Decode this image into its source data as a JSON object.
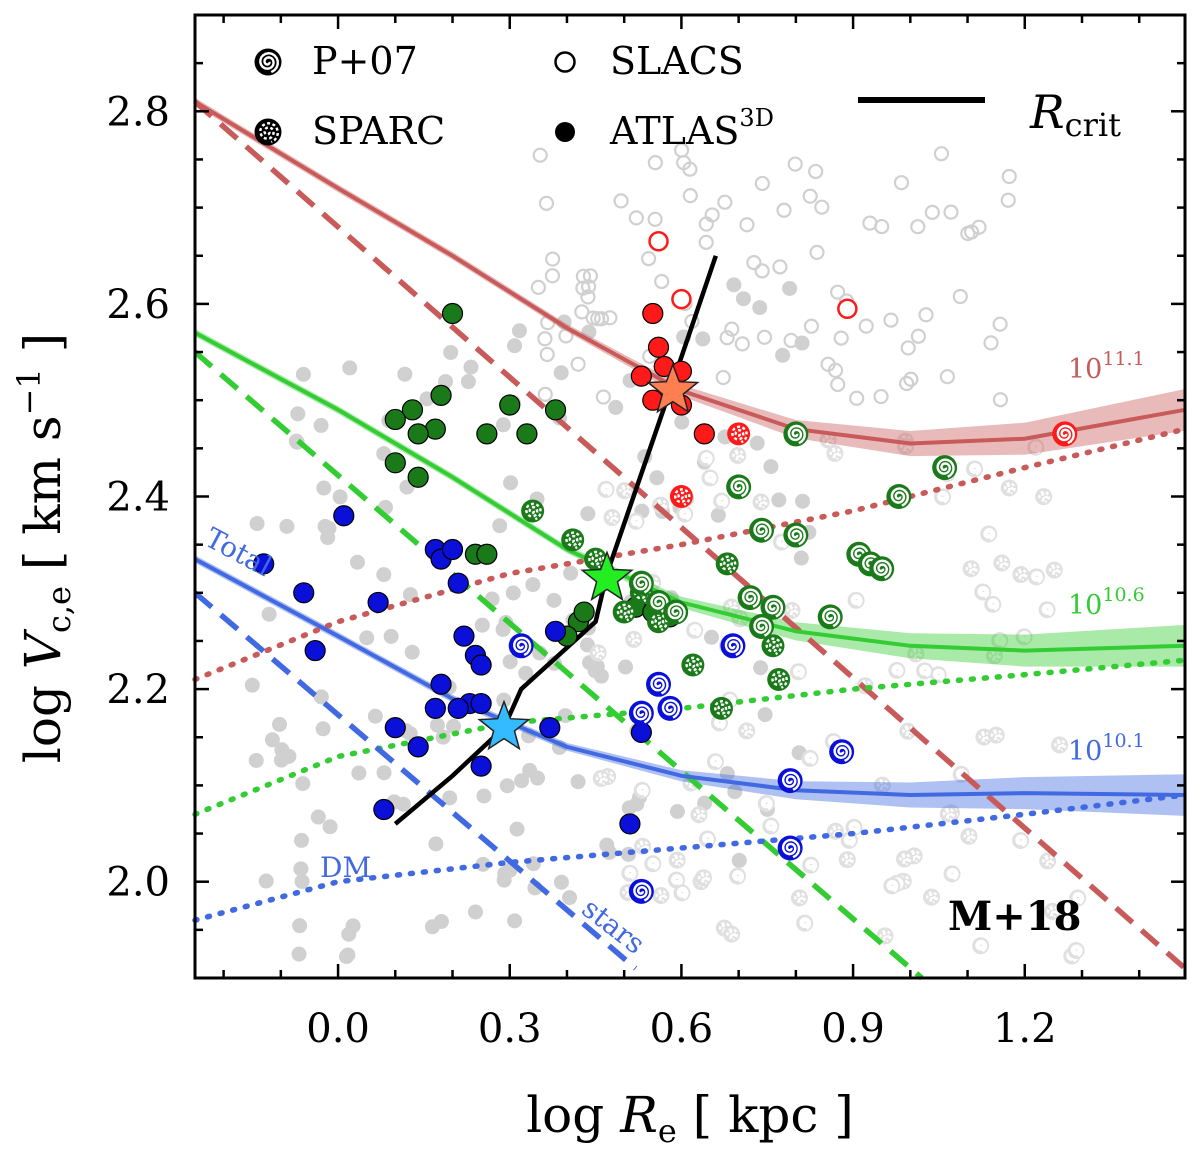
{
  "chart_data": {
    "type": "scatter",
    "xlabel": "log R_e [ kpc ]",
    "ylabel": "log V_c,e [ km s^-1 ]",
    "xlim": [
      -0.25,
      1.48
    ],
    "ylim": [
      1.9,
      2.9
    ],
    "x_ticks": [
      0.0,
      0.3,
      0.6,
      0.9,
      1.2
    ],
    "x_tick_labels": [
      "0.0",
      "0.3",
      "0.6",
      "0.9",
      "1.2"
    ],
    "y_ticks": [
      2.0,
      2.2,
      2.4,
      2.6,
      2.8
    ],
    "y_tick_labels": [
      "2.0",
      "2.2",
      "2.4",
      "2.6",
      "2.8"
    ],
    "badge": "M+18",
    "legend": {
      "p07": "P+07",
      "sparc": "SPARC",
      "slacs": "SLACS",
      "atlas": "ATLAS",
      "atlas_sup": "3D",
      "rcrit": "R",
      "rcrit_sub": "crit"
    },
    "mass_labels": {
      "high": {
        "base": "10",
        "exp": "11.1"
      },
      "mid": {
        "base": "10",
        "exp": "10.6"
      },
      "low": {
        "base": "10",
        "exp": "10.1"
      }
    },
    "curve_labels": {
      "total": "Total",
      "dm": "DM",
      "stars": "stars"
    },
    "colors": {
      "high": "#c85a5a",
      "mid": "#33cc33",
      "low": "#4169e1",
      "gray": "#d0d0d0"
    },
    "series": [
      {
        "name": "10^11.1 total",
        "color": "#c85a5a",
        "style": "solid",
        "x": [
          -0.25,
          0.0,
          0.2,
          0.4,
          0.6,
          0.8,
          1.0,
          1.2,
          1.48
        ],
        "y": [
          2.81,
          2.72,
          2.65,
          2.575,
          2.51,
          2.47,
          2.455,
          2.46,
          2.49
        ]
      },
      {
        "name": "10^11.1 stars",
        "color": "#c85a5a",
        "style": "dashed",
        "x": [
          -0.25,
          1.48
        ],
        "y": [
          2.81,
          1.91
        ]
      },
      {
        "name": "10^11.1 DM",
        "color": "#c85a5a",
        "style": "dotted",
        "x": [
          -0.25,
          0.0,
          0.3,
          0.6,
          0.9,
          1.2,
          1.48
        ],
        "y": [
          2.21,
          2.27,
          2.32,
          2.35,
          2.385,
          2.43,
          2.47
        ]
      },
      {
        "name": "10^10.6 total",
        "color": "#33cc33",
        "style": "solid",
        "x": [
          -0.25,
          0.0,
          0.2,
          0.4,
          0.6,
          0.8,
          1.0,
          1.2,
          1.48
        ],
        "y": [
          2.57,
          2.49,
          2.42,
          2.345,
          2.29,
          2.26,
          2.245,
          2.24,
          2.245
        ]
      },
      {
        "name": "10^10.6 stars",
        "color": "#33cc33",
        "style": "dashed",
        "x": [
          -0.25,
          1.02
        ],
        "y": [
          2.55,
          1.9
        ]
      },
      {
        "name": "10^10.6 DM",
        "color": "#33cc33",
        "style": "dotted",
        "x": [
          -0.25,
          0.0,
          0.3,
          0.6,
          0.9,
          1.2,
          1.48
        ],
        "y": [
          2.07,
          2.13,
          2.165,
          2.18,
          2.2,
          2.215,
          2.23
        ]
      },
      {
        "name": "10^10.1 total",
        "color": "#4169e1",
        "style": "solid",
        "x": [
          -0.25,
          0.0,
          0.2,
          0.4,
          0.6,
          0.8,
          1.0,
          1.2,
          1.48
        ],
        "y": [
          2.335,
          2.255,
          2.19,
          2.14,
          2.11,
          2.095,
          2.09,
          2.092,
          2.09
        ]
      },
      {
        "name": "10^10.1 stars",
        "color": "#4169e1",
        "style": "dashed",
        "x": [
          -0.25,
          0.52
        ],
        "y": [
          2.3,
          1.91
        ]
      },
      {
        "name": "10^10.1 DM",
        "color": "#4169e1",
        "style": "dotted",
        "x": [
          -0.25,
          0.0,
          0.3,
          0.6,
          0.9,
          1.2,
          1.48
        ],
        "y": [
          1.96,
          2.0,
          2.02,
          2.035,
          2.05,
          2.07,
          2.09
        ]
      },
      {
        "name": "R_crit",
        "color": "#000000",
        "style": "solid",
        "x": [
          0.1,
          0.2,
          0.29,
          0.32,
          0.45,
          0.47,
          0.58,
          0.66
        ],
        "y": [
          2.06,
          2.11,
          2.16,
          2.2,
          2.27,
          2.32,
          2.51,
          2.65
        ]
      }
    ],
    "stars": [
      {
        "x": 0.585,
        "y": 2.51,
        "color": "#ff7f50"
      },
      {
        "x": 0.47,
        "y": 2.315,
        "color": "#22ee22"
      },
      {
        "x": 0.29,
        "y": 2.16,
        "color": "#33bbff"
      }
    ],
    "atlas_points": [
      {
        "x": 0.55,
        "y": 2.59,
        "c": "#ff1a1a"
      },
      {
        "x": 0.56,
        "y": 2.555,
        "c": "#ff1a1a"
      },
      {
        "x": 0.57,
        "y": 2.535,
        "c": "#ff1a1a"
      },
      {
        "x": 0.53,
        "y": 2.525,
        "c": "#ff1a1a"
      },
      {
        "x": 0.6,
        "y": 2.53,
        "c": "#ff1a1a"
      },
      {
        "x": 0.55,
        "y": 2.5,
        "c": "#ff1a1a"
      },
      {
        "x": 0.6,
        "y": 2.495,
        "c": "#ff1a1a"
      },
      {
        "x": 0.64,
        "y": 2.465,
        "c": "#ff1a1a"
      },
      {
        "x": 0.2,
        "y": 2.59,
        "c": "#1a7a1a"
      },
      {
        "x": 0.18,
        "y": 2.505,
        "c": "#1a7a1a"
      },
      {
        "x": 0.13,
        "y": 2.49,
        "c": "#1a7a1a"
      },
      {
        "x": 0.1,
        "y": 2.48,
        "c": "#1a7a1a"
      },
      {
        "x": 0.17,
        "y": 2.47,
        "c": "#1a7a1a"
      },
      {
        "x": 0.14,
        "y": 2.465,
        "c": "#1a7a1a"
      },
      {
        "x": 0.3,
        "y": 2.495,
        "c": "#1a7a1a"
      },
      {
        "x": 0.38,
        "y": 2.49,
        "c": "#1a7a1a"
      },
      {
        "x": 0.26,
        "y": 2.465,
        "c": "#1a7a1a"
      },
      {
        "x": 0.33,
        "y": 2.465,
        "c": "#1a7a1a"
      },
      {
        "x": 0.1,
        "y": 2.435,
        "c": "#1a7a1a"
      },
      {
        "x": 0.14,
        "y": 2.42,
        "c": "#1a7a1a"
      },
      {
        "x": 0.24,
        "y": 2.34,
        "c": "#1a7a1a"
      },
      {
        "x": 0.26,
        "y": 2.34,
        "c": "#1a7a1a"
      },
      {
        "x": 0.42,
        "y": 2.27,
        "c": "#1a7a1a"
      },
      {
        "x": 0.43,
        "y": 2.28,
        "c": "#1a7a1a"
      },
      {
        "x": 0.4,
        "y": 2.255,
        "c": "#1a7a1a"
      },
      {
        "x": 0.52,
        "y": 2.285,
        "c": "#1a7a1a"
      },
      {
        "x": 0.55,
        "y": 2.28,
        "c": "#1a7a1a"
      },
      {
        "x": 0.58,
        "y": 2.275,
        "c": "#1a7a1a"
      },
      {
        "x": 0.01,
        "y": 2.38,
        "c": "#0a10d8"
      },
      {
        "x": 0.17,
        "y": 2.345,
        "c": "#0a10d8"
      },
      {
        "x": 0.18,
        "y": 2.335,
        "c": "#0a10d8"
      },
      {
        "x": 0.2,
        "y": 2.345,
        "c": "#0a10d8"
      },
      {
        "x": -0.13,
        "y": 2.33,
        "c": "#0a10d8"
      },
      {
        "x": -0.06,
        "y": 2.3,
        "c": "#0a10d8"
      },
      {
        "x": 0.07,
        "y": 2.29,
        "c": "#0a10d8"
      },
      {
        "x": 0.21,
        "y": 2.31,
        "c": "#0a10d8"
      },
      {
        "x": 0.22,
        "y": 2.255,
        "c": "#0a10d8"
      },
      {
        "x": 0.24,
        "y": 2.235,
        "c": "#0a10d8"
      },
      {
        "x": 0.25,
        "y": 2.225,
        "c": "#0a10d8"
      },
      {
        "x": -0.04,
        "y": 2.24,
        "c": "#0a10d8"
      },
      {
        "x": 0.18,
        "y": 2.205,
        "c": "#0a10d8"
      },
      {
        "x": 0.23,
        "y": 2.185,
        "c": "#0a10d8"
      },
      {
        "x": 0.17,
        "y": 2.18,
        "c": "#0a10d8"
      },
      {
        "x": 0.21,
        "y": 2.18,
        "c": "#0a10d8"
      },
      {
        "x": 0.25,
        "y": 2.185,
        "c": "#0a10d8"
      },
      {
        "x": 0.1,
        "y": 2.16,
        "c": "#0a10d8"
      },
      {
        "x": 0.14,
        "y": 2.14,
        "c": "#0a10d8"
      },
      {
        "x": 0.25,
        "y": 2.12,
        "c": "#0a10d8"
      },
      {
        "x": 0.38,
        "y": 2.26,
        "c": "#0a10d8"
      },
      {
        "x": 0.37,
        "y": 2.16,
        "c": "#0a10d8"
      },
      {
        "x": 0.53,
        "y": 2.155,
        "c": "#0a10d8"
      },
      {
        "x": 0.08,
        "y": 2.075,
        "c": "#0a10d8"
      },
      {
        "x": 0.51,
        "y": 2.06,
        "c": "#0a10d8"
      }
    ],
    "p07_points": [
      {
        "x": 1.27,
        "y": 2.465,
        "c": "#ff1a1a"
      },
      {
        "x": 0.8,
        "y": 2.465,
        "c": "#1a7a1a"
      },
      {
        "x": 1.06,
        "y": 2.43,
        "c": "#1a7a1a"
      },
      {
        "x": 0.7,
        "y": 2.41,
        "c": "#1a7a1a"
      },
      {
        "x": 0.98,
        "y": 2.4,
        "c": "#1a7a1a"
      },
      {
        "x": 0.74,
        "y": 2.365,
        "c": "#1a7a1a"
      },
      {
        "x": 0.8,
        "y": 2.36,
        "c": "#1a7a1a"
      },
      {
        "x": 0.91,
        "y": 2.34,
        "c": "#1a7a1a"
      },
      {
        "x": 0.93,
        "y": 2.33,
        "c": "#1a7a1a"
      },
      {
        "x": 0.95,
        "y": 2.325,
        "c": "#1a7a1a"
      },
      {
        "x": 0.72,
        "y": 2.295,
        "c": "#1a7a1a"
      },
      {
        "x": 0.76,
        "y": 2.285,
        "c": "#1a7a1a"
      },
      {
        "x": 0.86,
        "y": 2.275,
        "c": "#1a7a1a"
      },
      {
        "x": 0.74,
        "y": 2.265,
        "c": "#1a7a1a"
      },
      {
        "x": 0.53,
        "y": 2.31,
        "c": "#1a7a1a"
      },
      {
        "x": 0.56,
        "y": 2.29,
        "c": "#1a7a1a"
      },
      {
        "x": 0.59,
        "y": 2.28,
        "c": "#1a7a1a"
      },
      {
        "x": 0.32,
        "y": 2.245,
        "c": "#0a10d8"
      },
      {
        "x": 0.69,
        "y": 2.245,
        "c": "#0a10d8"
      },
      {
        "x": 0.56,
        "y": 2.205,
        "c": "#0a10d8"
      },
      {
        "x": 0.58,
        "y": 2.18,
        "c": "#0a10d8"
      },
      {
        "x": 0.53,
        "y": 2.175,
        "c": "#0a10d8"
      },
      {
        "x": 0.88,
        "y": 2.135,
        "c": "#0a10d8"
      },
      {
        "x": 0.79,
        "y": 2.105,
        "c": "#0a10d8"
      },
      {
        "x": 0.79,
        "y": 2.035,
        "c": "#0a10d8"
      },
      {
        "x": 0.53,
        "y": 1.99,
        "c": "#0a10d8"
      }
    ],
    "sparc_points": [
      {
        "x": 0.7,
        "y": 2.465,
        "c": "#ff1a1a"
      },
      {
        "x": 0.6,
        "y": 2.4,
        "c": "#ff1a1a"
      },
      {
        "x": 0.34,
        "y": 2.385,
        "c": "#1a7a1a"
      },
      {
        "x": 0.41,
        "y": 2.355,
        "c": "#1a7a1a"
      },
      {
        "x": 0.45,
        "y": 2.335,
        "c": "#1a7a1a"
      },
      {
        "x": 0.53,
        "y": 2.3,
        "c": "#1a7a1a"
      },
      {
        "x": 0.68,
        "y": 2.33,
        "c": "#1a7a1a"
      },
      {
        "x": 0.5,
        "y": 2.28,
        "c": "#1a7a1a"
      },
      {
        "x": 0.56,
        "y": 2.27,
        "c": "#1a7a1a"
      },
      {
        "x": 0.76,
        "y": 2.245,
        "c": "#1a7a1a"
      },
      {
        "x": 0.62,
        "y": 2.225,
        "c": "#1a7a1a"
      },
      {
        "x": 0.77,
        "y": 2.21,
        "c": "#1a7a1a"
      },
      {
        "x": 0.67,
        "y": 2.18,
        "c": "#1a7a1a"
      }
    ],
    "slacs_points": [
      {
        "x": 0.56,
        "y": 2.665,
        "c": "#ff1a1a"
      },
      {
        "x": 0.6,
        "y": 2.605,
        "c": "#ff1a1a"
      },
      {
        "x": 0.89,
        "y": 2.595,
        "c": "#ff1a1a"
      }
    ]
  }
}
